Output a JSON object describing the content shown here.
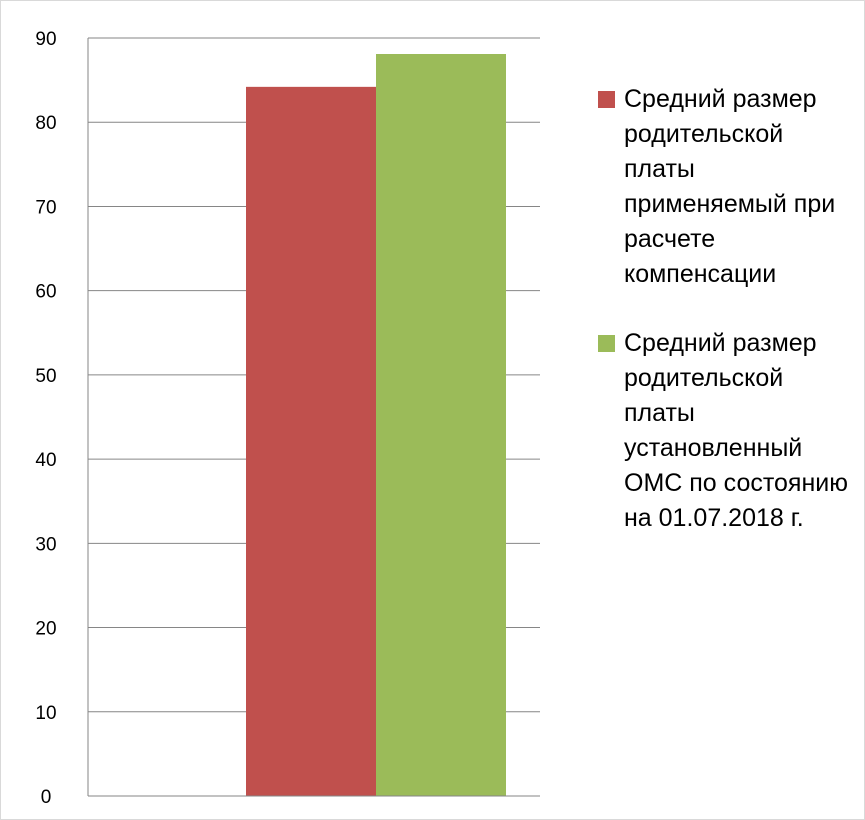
{
  "chart_data": {
    "type": "bar",
    "categories": [
      ""
    ],
    "series": [
      {
        "name": "Средний размер родительской платы применяемый при расчете компенсации",
        "color": "#c0504d",
        "values": [
          84.2
        ]
      },
      {
        "name": "Средний размер родительской платы установленный ОМС по состоянию на 01.07.2018 г.",
        "color": "#9bbb59",
        "values": [
          88.1
        ]
      }
    ],
    "title": "",
    "xlabel": "",
    "ylabel": "",
    "ylim": [
      0,
      90
    ],
    "yticks": [
      "0",
      "10",
      "20",
      "30",
      "40",
      "50",
      "60",
      "70",
      "80",
      "90"
    ],
    "grid": true,
    "legend_position": "right"
  }
}
